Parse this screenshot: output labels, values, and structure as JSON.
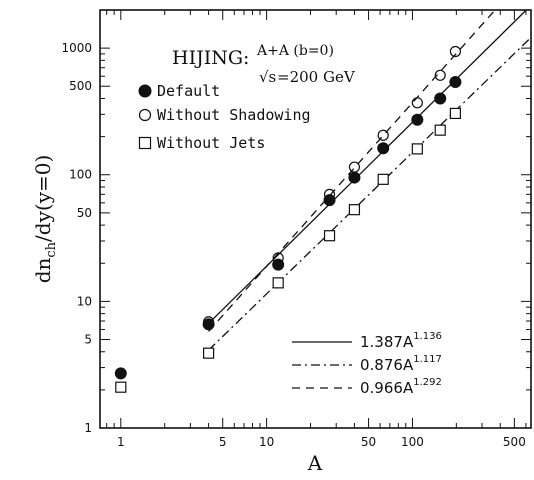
{
  "chart_data": {
    "type": "scatter",
    "x_scale": "log",
    "y_scale": "log",
    "xlabel": "A",
    "ylabel_main": "dn",
    "ylabel_sub": "ch",
    "ylabel_rest": "/dy(y=0)",
    "xlim": [
      0.72,
      650
    ],
    "ylim": [
      1,
      2000
    ],
    "xticks": [
      {
        "v": 1,
        "label": "1"
      },
      {
        "v": 5,
        "label": "5"
      },
      {
        "v": 10,
        "label": "10"
      },
      {
        "v": 50,
        "label": "50"
      },
      {
        "v": 100,
        "label": "100"
      },
      {
        "v": 500,
        "label": "500"
      }
    ],
    "yticks": [
      {
        "v": 1,
        "label": "1"
      },
      {
        "v": 5,
        "label": "5"
      },
      {
        "v": 10,
        "label": "10"
      },
      {
        "v": 50,
        "label": "50"
      },
      {
        "v": 100,
        "label": "100"
      },
      {
        "v": 500,
        "label": "500"
      },
      {
        "v": 1000,
        "label": "1000"
      }
    ],
    "annotation": {
      "model": "HIJING:",
      "system": "A+A (b=0)",
      "energy_sqrt": "√s",
      "energy_rest": "=200 GeV"
    },
    "series": [
      {
        "name": "Default",
        "marker": "filled-circle",
        "points": [
          [
            1,
            2.7
          ],
          [
            4,
            6.6
          ],
          [
            12,
            19.5
          ],
          [
            27,
            63
          ],
          [
            40,
            95
          ],
          [
            63,
            162
          ],
          [
            108,
            272
          ],
          [
            155,
            400
          ],
          [
            197,
            540
          ]
        ]
      },
      {
        "name": "Without Shadowing",
        "marker": "open-circle",
        "points": [
          [
            4,
            6.9
          ],
          [
            12,
            22
          ],
          [
            27,
            70
          ],
          [
            40,
            115
          ],
          [
            63,
            205
          ],
          [
            108,
            370
          ],
          [
            155,
            610
          ],
          [
            197,
            940
          ]
        ]
      },
      {
        "name": "Without Jets",
        "marker": "open-square",
        "points": [
          [
            1,
            2.1
          ],
          [
            4,
            3.9
          ],
          [
            12,
            14
          ],
          [
            27,
            33
          ],
          [
            40,
            53
          ],
          [
            63,
            92
          ],
          [
            108,
            160
          ],
          [
            155,
            225
          ],
          [
            197,
            305
          ]
        ]
      }
    ],
    "fits": [
      {
        "coef": 1.387,
        "exp": 1.136,
        "style": "solid",
        "text": "1.387A",
        "sup": "1.136"
      },
      {
        "coef": 0.876,
        "exp": 1.117,
        "style": "dashdot",
        "text": "0.876A",
        "sup": "1.117"
      },
      {
        "coef": 0.966,
        "exp": 1.292,
        "style": "dashed",
        "text": "0.966A",
        "sup": "1.292"
      }
    ],
    "fit_range": [
      4,
      650
    ]
  }
}
